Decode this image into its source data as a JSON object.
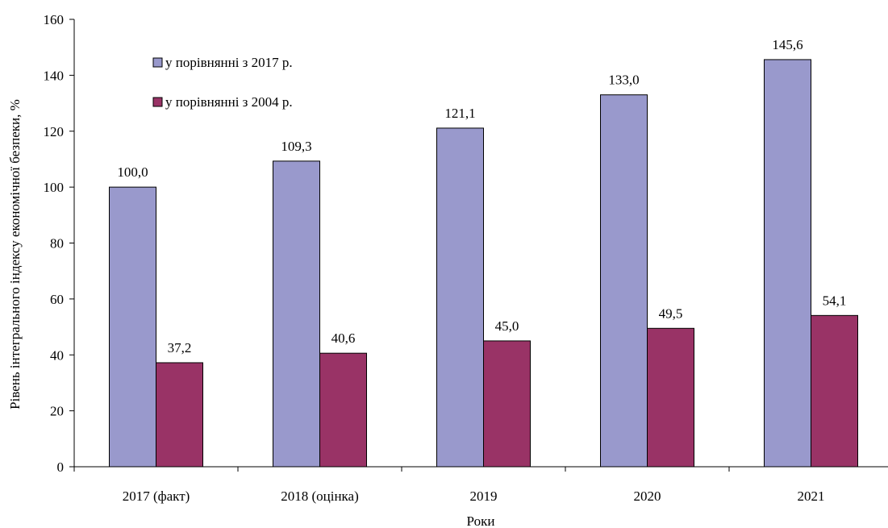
{
  "chart_data": {
    "type": "bar",
    "categories": [
      "2017 (факт)",
      "2018 (оцінка)",
      "2019",
      "2020",
      "2021"
    ],
    "series": [
      {
        "name": "у порівнянні з 2017 р.",
        "values": [
          100.0,
          109.3,
          121.1,
          133.0,
          145.6
        ],
        "labels": [
          "100,0",
          "109,3",
          "121,1",
          "133,0",
          "145,6"
        ],
        "color": "#9999cc"
      },
      {
        "name": "у порівнянні з 2004 р.",
        "values": [
          37.2,
          40.6,
          45.0,
          49.5,
          54.1
        ],
        "labels": [
          "37,2",
          "40,6",
          "45,0",
          "49,5",
          "54,1"
        ],
        "color": "#993366"
      }
    ],
    "xlabel": "Роки",
    "ylabel": "Рівень інтегрального індексу економічної безпеки, %",
    "ylim": [
      0,
      160
    ],
    "yticks": [
      0,
      20,
      40,
      60,
      80,
      100,
      120,
      140,
      160
    ],
    "grid": false,
    "legend": "top-left"
  }
}
